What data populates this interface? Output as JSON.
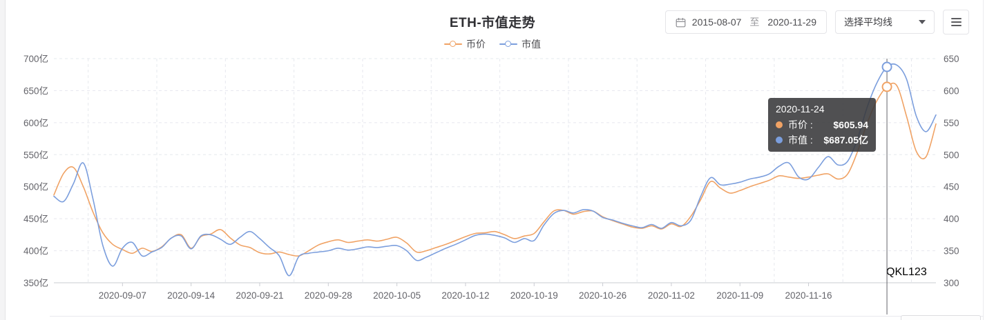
{
  "page": {
    "title": "ETH-市值走势"
  },
  "legend": {
    "items": [
      {
        "label": "币价",
        "color": "#F0A264"
      },
      {
        "label": "市值",
        "color": "#7B9EDD"
      }
    ]
  },
  "controls": {
    "date_range": {
      "start": "2015-08-07",
      "separator": "至",
      "end": "2020-11-29"
    },
    "average_select": {
      "label": "选择平均线"
    },
    "menu_button": {
      "icon": "hamburger"
    }
  },
  "tooltip": {
    "date": "2020-11-24",
    "rows": [
      {
        "label": "币价 :",
        "value": "$605.94",
        "color": "#F0A264"
      },
      {
        "label": "市值 :",
        "value": "$687.05亿",
        "color": "#7B9EDD"
      }
    ]
  },
  "watermark": {
    "text_gray": "QKL",
    "text_orange": "123"
  },
  "chart_data": {
    "type": "line",
    "title": "ETH-市值走势",
    "legend_position": "top-center",
    "grid": true,
    "x": [
      "2020-08-31",
      "2020-09-01",
      "2020-09-02",
      "2020-09-03",
      "2020-09-04",
      "2020-09-05",
      "2020-09-06",
      "2020-09-07",
      "2020-09-08",
      "2020-09-09",
      "2020-09-10",
      "2020-09-11",
      "2020-09-12",
      "2020-09-13",
      "2020-09-14",
      "2020-09-15",
      "2020-09-16",
      "2020-09-17",
      "2020-09-18",
      "2020-09-19",
      "2020-09-20",
      "2020-09-21",
      "2020-09-22",
      "2020-09-23",
      "2020-09-24",
      "2020-09-25",
      "2020-09-26",
      "2020-09-27",
      "2020-09-28",
      "2020-09-29",
      "2020-09-30",
      "2020-10-01",
      "2020-10-02",
      "2020-10-03",
      "2020-10-04",
      "2020-10-05",
      "2020-10-06",
      "2020-10-07",
      "2020-10-08",
      "2020-10-09",
      "2020-10-10",
      "2020-10-11",
      "2020-10-12",
      "2020-10-13",
      "2020-10-14",
      "2020-10-15",
      "2020-10-16",
      "2020-10-17",
      "2020-10-18",
      "2020-10-19",
      "2020-10-20",
      "2020-10-21",
      "2020-10-22",
      "2020-10-23",
      "2020-10-24",
      "2020-10-25",
      "2020-10-26",
      "2020-10-27",
      "2020-10-28",
      "2020-10-29",
      "2020-10-30",
      "2020-10-31",
      "2020-11-01",
      "2020-11-02",
      "2020-11-03",
      "2020-11-04",
      "2020-11-05",
      "2020-11-06",
      "2020-11-07",
      "2020-11-08",
      "2020-11-09",
      "2020-11-10",
      "2020-11-11",
      "2020-11-12",
      "2020-11-13",
      "2020-11-14",
      "2020-11-15",
      "2020-11-16",
      "2020-11-17",
      "2020-11-18",
      "2020-11-19",
      "2020-11-20",
      "2020-11-21",
      "2020-11-22",
      "2020-11-23",
      "2020-11-24",
      "2020-11-25",
      "2020-11-26",
      "2020-11-27",
      "2020-11-28",
      "2020-11-29"
    ],
    "series": [
      {
        "name": "币价",
        "axis": "right",
        "unit": "$",
        "color": "#F0A264",
        "values": [
          437,
          471,
          480,
          450,
          410,
          378,
          360,
          352,
          346,
          354,
          349,
          356,
          370,
          375,
          354,
          372,
          376,
          383,
          370,
          359,
          355,
          347,
          345,
          348,
          344,
          342,
          350,
          359,
          364,
          367,
          363,
          365,
          367,
          365,
          368,
          371,
          362,
          348,
          350,
          355,
          360,
          366,
          372,
          377,
          378,
          380,
          375,
          369,
          373,
          377,
          395,
          412,
          413,
          407,
          411,
          412,
          403,
          397,
          392,
          387,
          385,
          389,
          384,
          392,
          388,
          404,
          430,
          458,
          448,
          440,
          444,
          450,
          455,
          460,
          467,
          465,
          463,
          465,
          468,
          470,
          462,
          470,
          505,
          550,
          585,
          605.94,
          608,
          560,
          505,
          497,
          548
        ]
      },
      {
        "name": "市值",
        "axis": "left",
        "unit": "亿",
        "color": "#7B9EDD",
        "values": [
          485,
          477,
          505,
          537,
          480,
          408,
          376,
          404,
          413,
          392,
          398,
          405,
          420,
          423,
          403,
          423,
          425,
          418,
          410,
          421,
          430,
          419,
          405,
          392,
          361,
          391,
          396,
          398,
          400,
          404,
          401,
          403,
          406,
          405,
          407,
          408,
          400,
          385,
          390,
          397,
          404,
          410,
          417,
          424,
          426,
          424,
          420,
          413,
          419,
          416,
          440,
          458,
          463,
          459,
          464,
          462,
          452,
          448,
          443,
          439,
          436,
          441,
          435,
          444,
          439,
          448,
          485,
          514,
          503,
          504,
          507,
          512,
          515,
          520,
          532,
          537,
          515,
          512,
          530,
          547,
          534,
          540,
          575,
          625,
          663,
          687.05,
          690,
          668,
          610,
          586,
          612
        ]
      }
    ],
    "left_axis": {
      "min": 350,
      "max": 700,
      "ticks": [
        "700亿",
        "650亿",
        "600亿",
        "550亿",
        "500亿",
        "450亿",
        "400亿",
        "350亿"
      ]
    },
    "right_axis": {
      "min": 300,
      "max": 650,
      "ticks": [
        "650",
        "600",
        "550",
        "500",
        "450",
        "400",
        "350",
        "300"
      ]
    },
    "x_ticks": [
      "2020-09-07",
      "2020-09-14",
      "2020-09-21",
      "2020-09-28",
      "2020-10-05",
      "2020-10-12",
      "2020-10-19",
      "2020-10-26",
      "2020-11-02",
      "2020-11-09",
      "2020-11-16"
    ],
    "highlight": {
      "date": "2020-11-24",
      "price": 605.94,
      "mcap": 687.05
    }
  }
}
